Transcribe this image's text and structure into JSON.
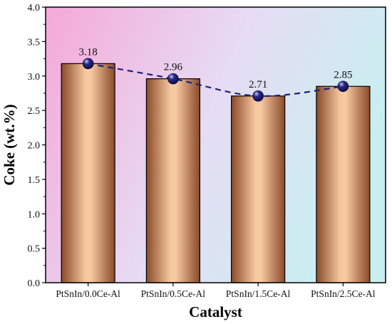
{
  "chart_data": {
    "type": "bar",
    "title": "",
    "xlabel": "Catalyst",
    "ylabel": "Coke (wt.%)",
    "categories": [
      "PtSnIn/0.0Ce-Al",
      "PtSnIn/0.5Ce-Al",
      "PtSnIn/1.5Ce-Al",
      "PtSnIn/2.5Ce-Al"
    ],
    "values": [
      3.18,
      2.96,
      2.71,
      2.85
    ],
    "data_labels": [
      "3.18",
      "2.96",
      "2.71",
      "2.85"
    ],
    "ylim": [
      0,
      4.0
    ],
    "yticks": [
      "0.0",
      "0.5",
      "1.0",
      "1.5",
      "2.0",
      "2.5",
      "3.0",
      "3.5",
      "4.0"
    ],
    "grid": false,
    "overlay": {
      "type": "line",
      "style": "dashed",
      "markers": "sphere",
      "values": [
        3.18,
        2.96,
        2.71,
        2.85
      ],
      "color": "#1a237e"
    },
    "colors": {
      "bar_center": "#f7c9a0",
      "bar_edge": "#8a4a2a",
      "background_left": "#f5a8d8",
      "background_right": "#c9eef2",
      "line": "#1a237e",
      "marker": "#2a2a8a"
    }
  }
}
